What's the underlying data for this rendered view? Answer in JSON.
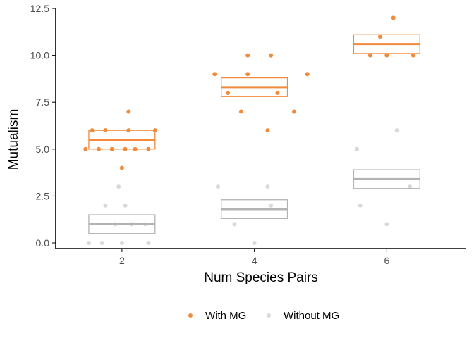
{
  "chart_data": {
    "type": "scatter",
    "title": "",
    "xlabel": "Num Species Pairs",
    "ylabel": "Mutualism",
    "x_ticks": [
      "2",
      "4",
      "6"
    ],
    "y_ticks": [
      "0.0",
      "2.5",
      "5.0",
      "7.5",
      "10.0",
      "12.5"
    ],
    "xlim": [
      1,
      7.2
    ],
    "ylim": [
      -0.3,
      12.5
    ],
    "grid": false,
    "legend_position": "bottom",
    "series": [
      {
        "name": "With MG",
        "color": "#F28A3C",
        "box_color": "#F28A3C",
        "points": [
          {
            "x": 1.45,
            "y": 5
          },
          {
            "x": 1.55,
            "y": 6
          },
          {
            "x": 1.65,
            "y": 5
          },
          {
            "x": 1.75,
            "y": 6
          },
          {
            "x": 1.85,
            "y": 5
          },
          {
            "x": 2.0,
            "y": 4
          },
          {
            "x": 2.05,
            "y": 5
          },
          {
            "x": 2.1,
            "y": 7
          },
          {
            "x": 2.1,
            "y": 6
          },
          {
            "x": 2.2,
            "y": 5
          },
          {
            "x": 2.4,
            "y": 5
          },
          {
            "x": 2.5,
            "y": 6
          },
          {
            "x": 3.4,
            "y": 9
          },
          {
            "x": 3.6,
            "y": 8
          },
          {
            "x": 3.8,
            "y": 7
          },
          {
            "x": 3.9,
            "y": 10
          },
          {
            "x": 3.9,
            "y": 9
          },
          {
            "x": 4.2,
            "y": 6
          },
          {
            "x": 4.25,
            "y": 10
          },
          {
            "x": 4.35,
            "y": 8
          },
          {
            "x": 4.6,
            "y": 7
          },
          {
            "x": 4.8,
            "y": 9
          },
          {
            "x": 5.75,
            "y": 10
          },
          {
            "x": 5.9,
            "y": 11
          },
          {
            "x": 6.0,
            "y": 10
          },
          {
            "x": 6.1,
            "y": 12
          },
          {
            "x": 6.4,
            "y": 10
          }
        ],
        "boxes": [
          {
            "x": 2,
            "low": 5.0,
            "mid": 5.5,
            "high": 6.0
          },
          {
            "x": 4,
            "low": 7.8,
            "mid": 8.3,
            "high": 8.8
          },
          {
            "x": 6,
            "low": 10.1,
            "mid": 10.6,
            "high": 11.1
          }
        ]
      },
      {
        "name": "Without MG",
        "color": "#D9D9D9",
        "box_color": "#B3B3B3",
        "points": [
          {
            "x": 1.5,
            "y": 0
          },
          {
            "x": 1.7,
            "y": 0
          },
          {
            "x": 1.75,
            "y": 2
          },
          {
            "x": 1.9,
            "y": 1
          },
          {
            "x": 1.95,
            "y": 3
          },
          {
            "x": 2.0,
            "y": 0
          },
          {
            "x": 2.05,
            "y": 2
          },
          {
            "x": 2.15,
            "y": 1
          },
          {
            "x": 2.35,
            "y": 1
          },
          {
            "x": 2.4,
            "y": 0
          },
          {
            "x": 3.45,
            "y": 3
          },
          {
            "x": 3.7,
            "y": 1
          },
          {
            "x": 4.0,
            "y": 0
          },
          {
            "x": 4.2,
            "y": 3
          },
          {
            "x": 4.25,
            "y": 2
          },
          {
            "x": 5.55,
            "y": 5
          },
          {
            "x": 5.6,
            "y": 2
          },
          {
            "x": 6.0,
            "y": 1
          },
          {
            "x": 6.15,
            "y": 6
          },
          {
            "x": 6.35,
            "y": 3
          }
        ],
        "boxes": [
          {
            "x": 2,
            "low": 0.5,
            "mid": 1.0,
            "high": 1.5
          },
          {
            "x": 4,
            "low": 1.3,
            "mid": 1.8,
            "high": 2.3
          },
          {
            "x": 6,
            "low": 2.9,
            "mid": 3.4,
            "high": 3.9
          }
        ]
      }
    ]
  }
}
